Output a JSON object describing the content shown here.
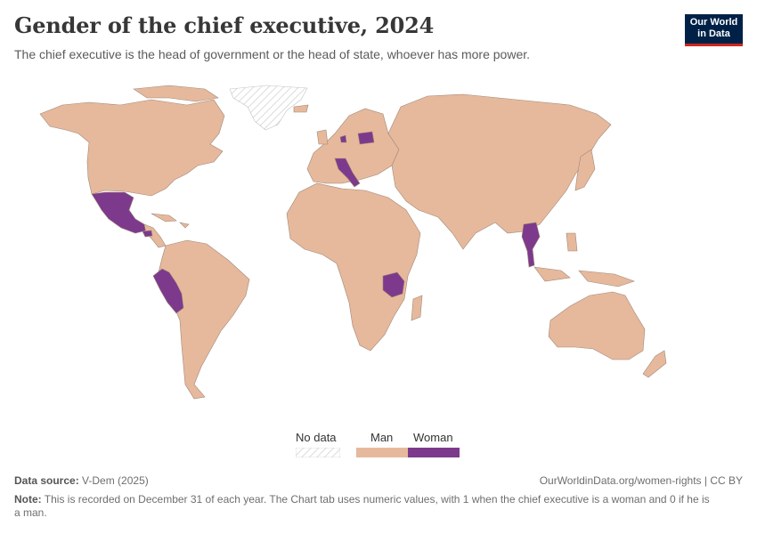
{
  "header": {
    "title": "Gender of the chief executive, 2024",
    "subtitle": "The chief executive is the head of government or the head of state, whoever has more power."
  },
  "logo": {
    "line1": "Our World",
    "line2": "in Data"
  },
  "legend": {
    "no_data": "No data",
    "man": "Man",
    "woman": "Woman"
  },
  "colors": {
    "man": "#e6b99c",
    "woman": "#7d3a8c",
    "no_data_hatch": "#cfcfcf",
    "border": "#a08878"
  },
  "footer": {
    "source_label": "Data source:",
    "source_value": "V-Dem (2025)",
    "credit": "OurWorldinData.org/women-rights | CC BY",
    "note_label": "Note:",
    "note_text": "This is recorded on December 31 of each year. The Chart tab uses numeric values, with 1 when the chief executive is a woman and 0 if he is a man."
  },
  "chart_data": {
    "type": "choropleth",
    "year": 2024,
    "categories": [
      "No data",
      "Man",
      "Woman"
    ],
    "woman_led_countries": [
      "Mexico",
      "Peru",
      "Italy",
      "Denmark",
      "Poland",
      "Tanzania",
      "Thailand",
      "Honduras"
    ],
    "no_data_regions": [
      "Greenland"
    ],
    "default_category": "Man"
  }
}
